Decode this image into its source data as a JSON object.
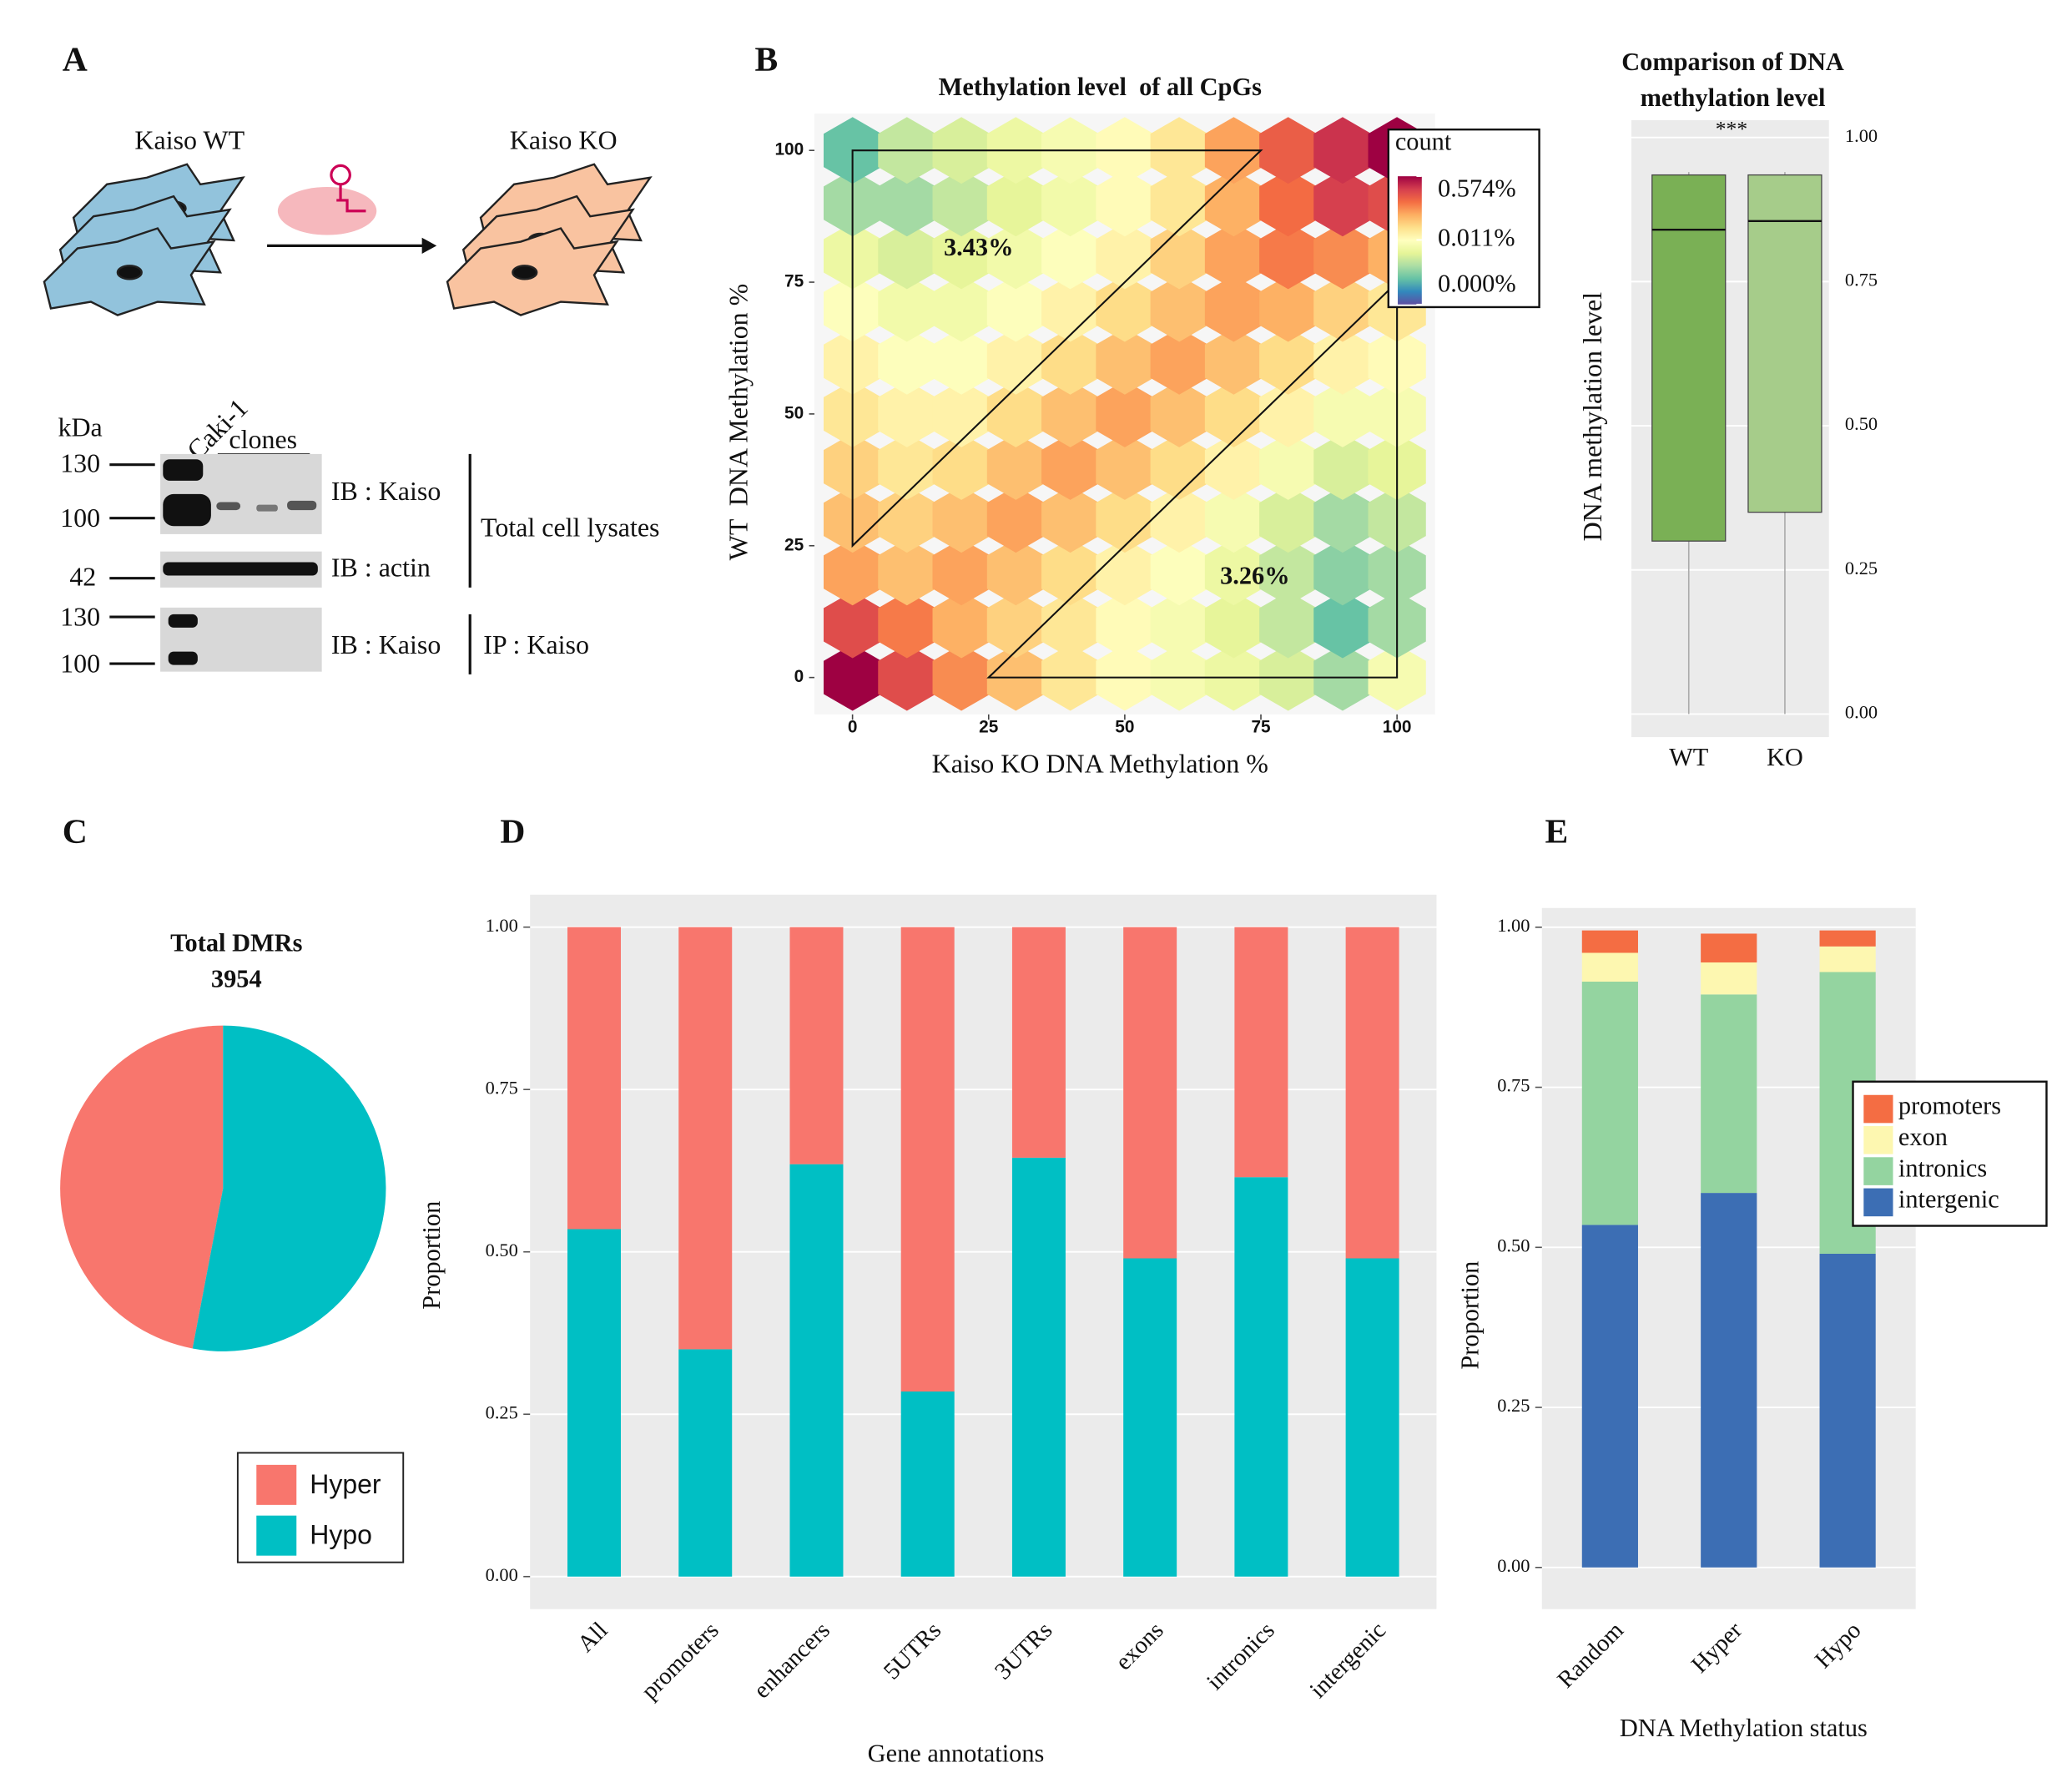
{
  "panel_labels": [
    "A",
    "B",
    "C",
    "D",
    "E"
  ],
  "panel_a": {
    "wt": "Kaiso WT",
    "ko": "Kaiso KO",
    "kda": "kDa",
    "lane": "Caki-1",
    "clones": "clones",
    "markers": [
      130,
      100,
      42,
      130,
      100
    ],
    "blots": [
      "IB : Kaiso",
      "IB : actin",
      "IB : Kaiso"
    ],
    "groups": [
      "Total cell lysates",
      "IP : Kaiso"
    ]
  },
  "chart_data": [
    {
      "type": "hexbin",
      "title": "Methylation level  of all CpGs",
      "xlabel": "Kaiso KO DNA Methylation %",
      "ylabel": "WT  DNA Methylation %",
      "x": [
        0,
        10,
        20,
        30,
        40,
        50,
        60,
        70,
        80,
        90,
        100
      ],
      "y": [
        0,
        10,
        20,
        30,
        40,
        50,
        60,
        70,
        80,
        90,
        100
      ],
      "values": [
        [
          0.574,
          0.2,
          0.08,
          0.04,
          0.02,
          0.012,
          0.008,
          0.006,
          0.004,
          0.002,
          0.008
        ],
        [
          0.2,
          0.1,
          0.05,
          0.03,
          0.02,
          0.012,
          0.008,
          0.005,
          0.003,
          0.001,
          0.002
        ],
        [
          0.06,
          0.04,
          0.06,
          0.04,
          0.025,
          0.015,
          0.01,
          0.006,
          0.003,
          0.0015,
          0.002
        ],
        [
          0.04,
          0.03,
          0.04,
          0.06,
          0.04,
          0.025,
          0.015,
          0.008,
          0.004,
          0.002,
          0.003
        ],
        [
          0.03,
          0.02,
          0.025,
          0.04,
          0.06,
          0.04,
          0.025,
          0.015,
          0.008,
          0.004,
          0.005
        ],
        [
          0.02,
          0.015,
          0.015,
          0.025,
          0.04,
          0.06,
          0.04,
          0.025,
          0.015,
          0.008,
          0.008
        ],
        [
          0.015,
          0.01,
          0.01,
          0.015,
          0.025,
          0.04,
          0.06,
          0.04,
          0.025,
          0.015,
          0.012
        ],
        [
          0.01,
          0.007,
          0.007,
          0.01,
          0.015,
          0.025,
          0.04,
          0.06,
          0.05,
          0.03,
          0.02
        ],
        [
          0.006,
          0.004,
          0.005,
          0.007,
          0.01,
          0.015,
          0.03,
          0.06,
          0.1,
          0.08,
          0.05
        ],
        [
          0.002,
          0.002,
          0.003,
          0.005,
          0.007,
          0.012,
          0.02,
          0.05,
          0.12,
          0.25,
          0.2
        ],
        [
          0.001,
          0.003,
          0.004,
          0.006,
          0.008,
          0.012,
          0.02,
          0.06,
          0.15,
          0.3,
          0.574
        ]
      ],
      "xlim": [
        -7,
        107
      ],
      "ylim": [
        -7,
        107
      ],
      "xticks": [
        0,
        25,
        50,
        75,
        100
      ],
      "yticks": [
        0,
        25,
        50,
        75,
        100
      ],
      "ref_lines": [
        {
          "slope": 1,
          "intercept": 25
        },
        {
          "slope": 1,
          "intercept": -25
        }
      ],
      "annotations": [
        "3.43%",
        "3.26%"
      ],
      "legend_title": "count",
      "log_color": true,
      "clim": [
        0.0002,
        0.574
      ],
      "cticks": [
        {
          "value": 0.0002,
          "label": "0.000%"
        },
        {
          "value": 0.011,
          "label": "0.011%"
        },
        {
          "value": 0.574,
          "label": "0.574%"
        }
      ],
      "colormap": [
        "#5e4fa2",
        "#3288bd",
        "#66c2a5",
        "#abdda4",
        "#e6f598",
        "#ffffbf",
        "#fee08b",
        "#fdae61",
        "#f46d43",
        "#d53e4f",
        "#9e0142"
      ]
    },
    {
      "type": "box",
      "title_lines": [
        "Comparison of DNA",
        "methylation level"
      ],
      "annotation": "***",
      "ylabel": "DNA methylation level",
      "categories": [
        "WT",
        "KO"
      ],
      "colors": [
        "#7ab055",
        "#a6cc8a"
      ],
      "low": [
        0,
        0
      ],
      "q1": [
        0.3,
        0.35
      ],
      "median": [
        0.84,
        0.855
      ],
      "q3": [
        0.935,
        0.935
      ],
      "high": [
        0.94,
        0.94
      ],
      "ylim": [
        -0.04,
        1.03
      ],
      "yticks": [
        {
          "value": 0,
          "label": "0.00"
        },
        {
          "value": 0.25,
          "label": "0.25"
        },
        {
          "value": 0.5,
          "label": "0.50"
        },
        {
          "value": 0.75,
          "label": "0.75"
        },
        {
          "value": 1,
          "label": "1.00"
        }
      ]
    },
    {
      "type": "pie",
      "title": "Total DMRs",
      "total": 3954,
      "categories": [
        "Hyper",
        "Hypo"
      ],
      "values": [
        47,
        53
      ],
      "colors": [
        "#f8766d",
        "#00bfc4"
      ]
    },
    {
      "type": "stacked_bar",
      "xlabel": "Gene annotations",
      "ylabel": "Proportion",
      "categories": [
        "All",
        "promoters",
        "enhancers",
        "5UTRs",
        "3UTRs",
        "exons",
        "intronics",
        "intergenic"
      ],
      "series": [
        {
          "name": "Hypo",
          "color": "#00bfc4",
          "values": [
            0.535,
            0.35,
            0.635,
            0.285,
            0.645,
            0.49,
            0.615,
            0.49
          ]
        },
        {
          "name": "Hyper",
          "color": "#f8766d",
          "values": [
            0.465,
            0.65,
            0.365,
            0.715,
            0.355,
            0.51,
            0.385,
            0.51
          ]
        }
      ],
      "ylim": [
        -0.05,
        1.05
      ],
      "yticks": [
        {
          "value": 0,
          "label": "0.00"
        },
        {
          "value": 0.25,
          "label": "0.25"
        },
        {
          "value": 0.5,
          "label": "0.50"
        },
        {
          "value": 0.75,
          "label": "0.75"
        },
        {
          "value": 1,
          "label": "1.00"
        }
      ]
    },
    {
      "type": "stacked_bar",
      "xlabel": "DNA Methylation status",
      "ylabel": "Proportion",
      "categories": [
        "Random",
        "Hyper",
        "Hypo"
      ],
      "series": [
        {
          "name": "intergenic",
          "color": "#3c6eb4",
          "values": [
            0.535,
            0.585,
            0.49
          ]
        },
        {
          "name": "intronics",
          "color": "#94d4a0",
          "values": [
            0.38,
            0.31,
            0.44
          ]
        },
        {
          "name": "exon",
          "color": "#fdf7b0",
          "values": [
            0.045,
            0.05,
            0.04
          ]
        },
        {
          "name": "promoters",
          "color": "#f46d43",
          "values": [
            0.035,
            0.045,
            0.025
          ]
        }
      ],
      "ylim": [
        -0.065,
        1.03
      ],
      "yticks": [
        {
          "value": 0,
          "label": "0.00"
        },
        {
          "value": 0.25,
          "label": "0.25"
        },
        {
          "value": 0.5,
          "label": "0.50"
        },
        {
          "value": 0.75,
          "label": "0.75"
        },
        {
          "value": 1,
          "label": "1.00"
        }
      ]
    }
  ]
}
